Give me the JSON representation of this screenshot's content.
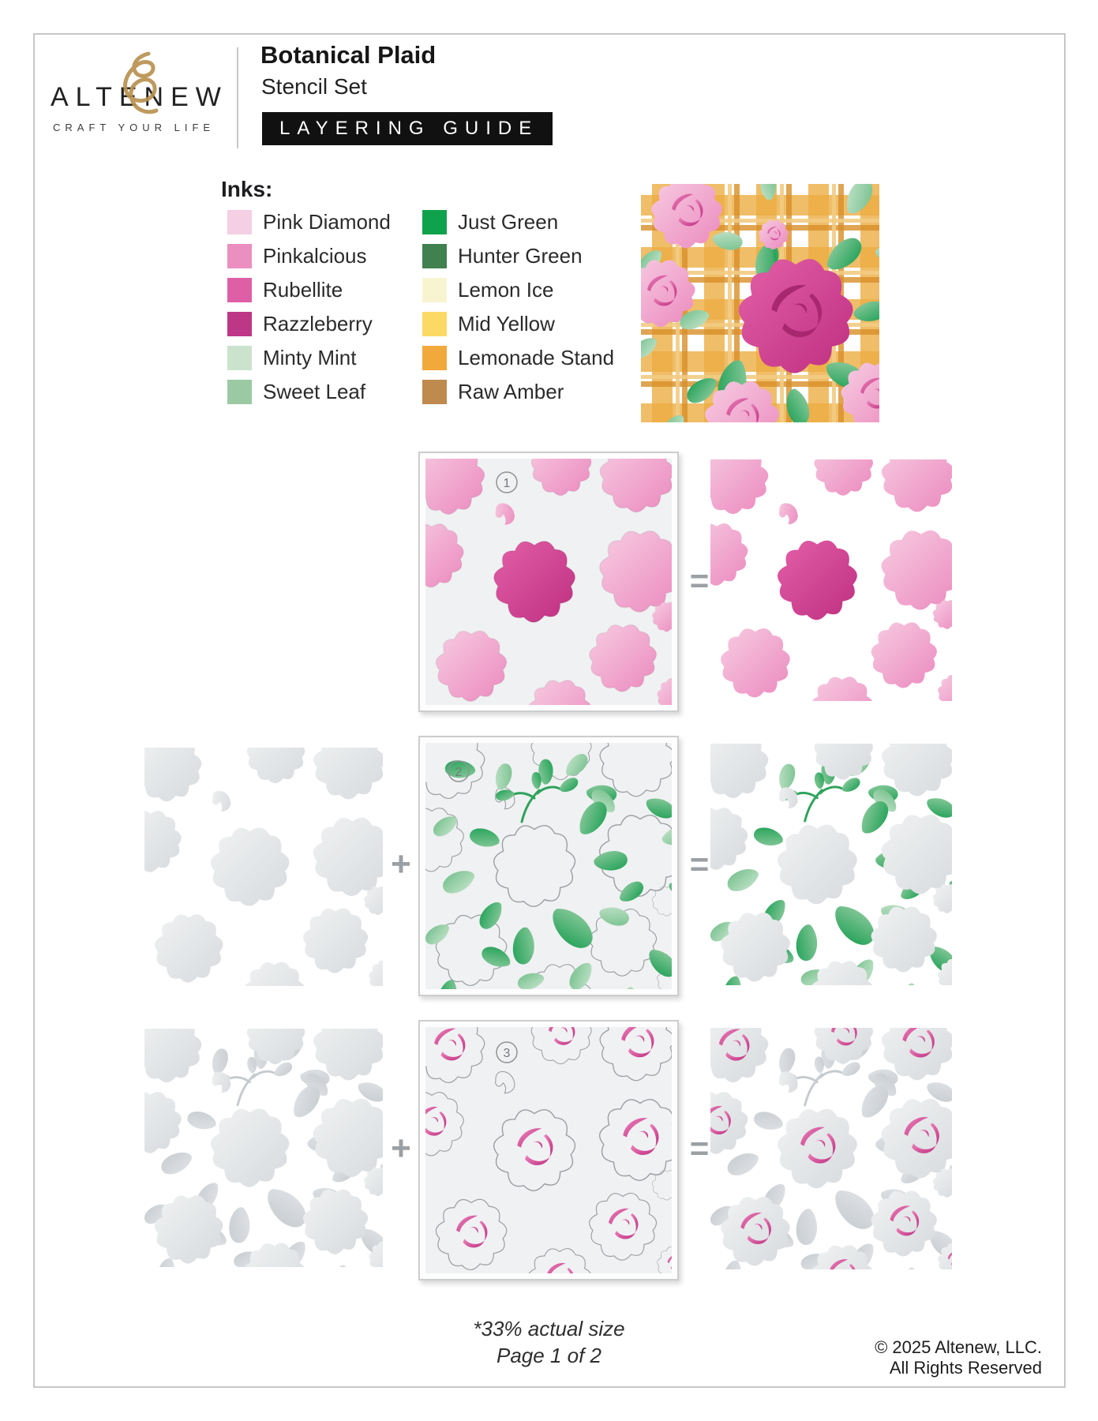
{
  "header": {
    "brand_pre": "ALT",
    "brand_mid": "E",
    "brand_post": "NEW",
    "tagline": "CRAFT YOUR LIFE",
    "title": "Botanical Plaid",
    "subtitle": "Stencil Set",
    "badge": "LAYERING GUIDE"
  },
  "inks": {
    "label": "Inks:",
    "items": [
      {
        "name": "Pink Diamond",
        "color": "#F5CFE3"
      },
      {
        "name": "Pinkalcious",
        "color": "#EB8FC1"
      },
      {
        "name": "Rubellite",
        "color": "#DE5FA6"
      },
      {
        "name": "Razzleberry",
        "color": "#BE3786"
      },
      {
        "name": "Minty Mint",
        "color": "#CBE3CC"
      },
      {
        "name": "Sweet Leaf",
        "color": "#9BC9A3"
      },
      {
        "name": "Just Green",
        "color": "#0FA24C"
      },
      {
        "name": "Hunter Green",
        "color": "#41804F"
      },
      {
        "name": "Lemon Ice",
        "color": "#F8F4D0"
      },
      {
        "name": "Mid Yellow",
        "color": "#FCD965"
      },
      {
        "name": "Lemonade Stand",
        "color": "#F2A93B"
      },
      {
        "name": "Raw Amber",
        "color": "#BE8A4E"
      }
    ]
  },
  "steps": {
    "numbers": [
      "1",
      "2",
      "3"
    ],
    "plus": "+",
    "equals": "="
  },
  "footer": {
    "size_note": "*33% actual size",
    "page": "Page 1 of 2",
    "copyright_line1": "© 2025 Altenew, LLC.",
    "copyright_line2": "All Rights Reserved"
  }
}
